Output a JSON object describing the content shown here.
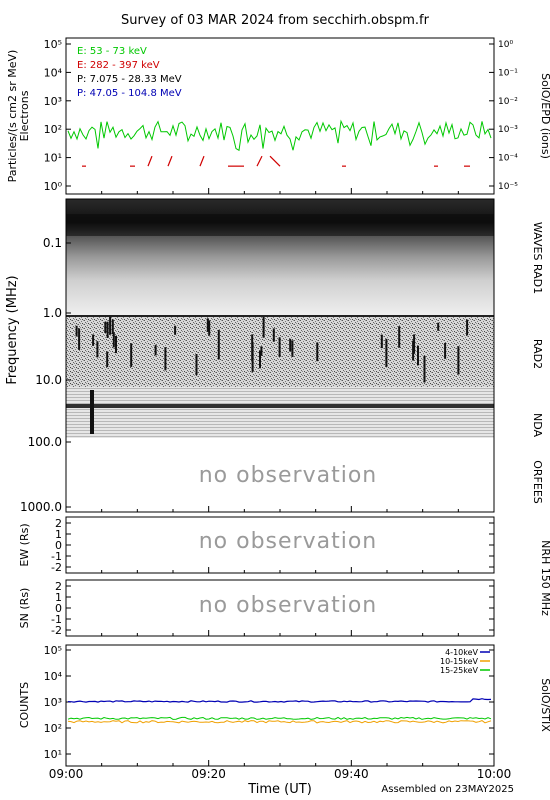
{
  "title": "Survey of 03 MAR 2024 from secchirh.obspm.fr",
  "footer": {
    "time_label": "Time (UT)",
    "assembled": "Assembled on 23MAY2025"
  },
  "time_ticks": [
    "09:00",
    "09:20",
    "09:40",
    "10:00"
  ],
  "colors": {
    "green": "#00c800",
    "red": "#d00000",
    "black": "#000000",
    "blue": "#0000b4",
    "orange": "#f0a000",
    "no_obs": "#9a9a9a"
  },
  "panels": {
    "particles": {
      "ylabel_1": "Particles/(s cm2 sr MeV)",
      "ylabel_2": "Electrons",
      "right_label": "SolO/EPD (ions)",
      "left_ticks": [
        "10⁰",
        "10¹",
        "10²",
        "10³",
        "10⁴",
        "10⁵"
      ],
      "right_ticks": [
        "10⁻⁵",
        "10⁻⁴",
        "10⁻³",
        "10⁻²",
        "10⁻¹",
        "10⁰"
      ],
      "legend": [
        {
          "text": "E: 53 - 73 keV",
          "color": "#00c800"
        },
        {
          "text": "E: 282 - 397 keV",
          "color": "#d00000"
        },
        {
          "text": "P: 7.075 - 28.33 MeV",
          "color": "#000000"
        },
        {
          "text": "P: 47.05 - 104.8 MeV",
          "color": "#0000b4"
        }
      ]
    },
    "radio": {
      "ylabel": "Frequency (MHz)",
      "ticks": [
        "0.1",
        "1.0",
        "10.0",
        "100.0",
        "1000.0"
      ],
      "labels": [
        "WAVES RAD1",
        "RAD2",
        "NDA",
        "ORFEES"
      ],
      "no_observation": "no observation"
    },
    "nrh_ew": {
      "ylabel": "EW (Rs)",
      "ticks": [
        "2",
        "1",
        "0",
        "-1",
        "-2"
      ],
      "no_observation": "no observation"
    },
    "nrh_ns": {
      "ylabel": "SN (Rs)",
      "ticks": [
        "2",
        "1",
        "0",
        "-1",
        "-2"
      ],
      "no_observation": "no observation"
    },
    "nrh_label": "NRH 150 MHz",
    "stix": {
      "ylabel": "COUNTS",
      "right_label": "SolO/STIX",
      "ticks": [
        "10¹",
        "10²",
        "10³",
        "10⁴",
        "10⁵"
      ],
      "legend": [
        {
          "text": "4-10keV",
          "color": "#0000b4"
        },
        {
          "text": "10-15keV",
          "color": "#f0a000"
        },
        {
          "text": "15-25keV",
          "color": "#00c800"
        }
      ]
    }
  },
  "chart_data": [
    {
      "type": "line",
      "title": "Survey of 03 MAR 2024 from secchirh.obspm.fr",
      "ylabel": "Particles/(s cm2 sr MeV) Electrons",
      "yscale": "log",
      "ylim": [
        1,
        100000
      ],
      "xlim": [
        "09:00",
        "10:00"
      ],
      "series": [
        {
          "name": "E: 53 - 73 keV",
          "approx_level": 100,
          "range": [
            30,
            250
          ]
        },
        {
          "name": "E: 282 - 397 keV",
          "approx_level": 5,
          "sparse": true
        }
      ]
    },
    {
      "type": "heatmap",
      "ylabel": "Frequency (MHz)",
      "yscale": "log",
      "ylim": [
        0.02,
        1000
      ],
      "instruments": [
        "WAVES RAD1",
        "RAD2",
        "NDA",
        "ORFEES"
      ],
      "orfees": "no observation"
    },
    {
      "type": "line",
      "ylabel": "EW (Rs)",
      "ylim": [
        -2.5,
        2.5
      ],
      "status": "no observation"
    },
    {
      "type": "line",
      "ylabel": "SN (Rs)",
      "ylim": [
        -2.5,
        2.5
      ],
      "status": "no observation"
    },
    {
      "type": "line",
      "ylabel": "COUNTS",
      "yscale": "log",
      "ylim": [
        10,
        100000
      ],
      "xlim": [
        "09:00",
        "10:00"
      ],
      "series": [
        {
          "name": "4-10keV",
          "approx_level": 1000
        },
        {
          "name": "10-15keV",
          "approx_level": 180
        },
        {
          "name": "15-25keV",
          "approx_level": 230
        }
      ]
    }
  ]
}
